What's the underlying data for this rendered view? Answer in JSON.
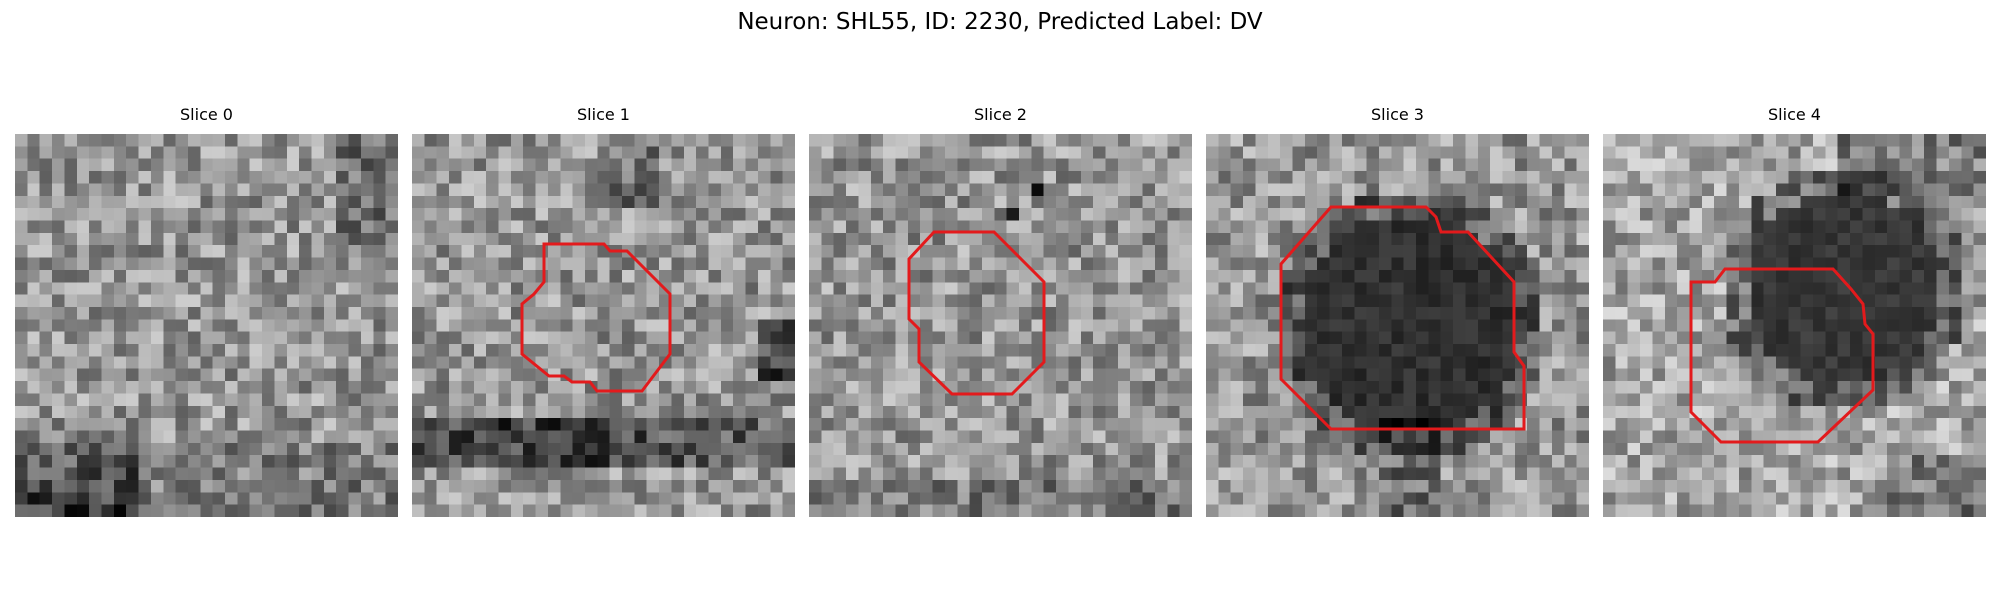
{
  "figure": {
    "title": "Neuron: SHL55, ID: 2230, Predicted Label: DV"
  },
  "colors": {
    "contour": "#e31a1c",
    "background": "#ffffff"
  },
  "panels": [
    {
      "title": "Slice 0",
      "has_contour": false,
      "darkness": "mottled grey texture, dark lower-left band"
    },
    {
      "title": "Slice 1",
      "has_contour": true,
      "darkness": "grey texture with dark horizontal band near bottom"
    },
    {
      "title": "Slice 2",
      "has_contour": true,
      "darkness": "noisy light grey texture"
    },
    {
      "title": "Slice 3",
      "has_contour": true,
      "darkness": "large dark round cell body in centre"
    },
    {
      "title": "Slice 4",
      "has_contour": true,
      "darkness": "dark round cell body upper-right of centre"
    }
  ]
}
